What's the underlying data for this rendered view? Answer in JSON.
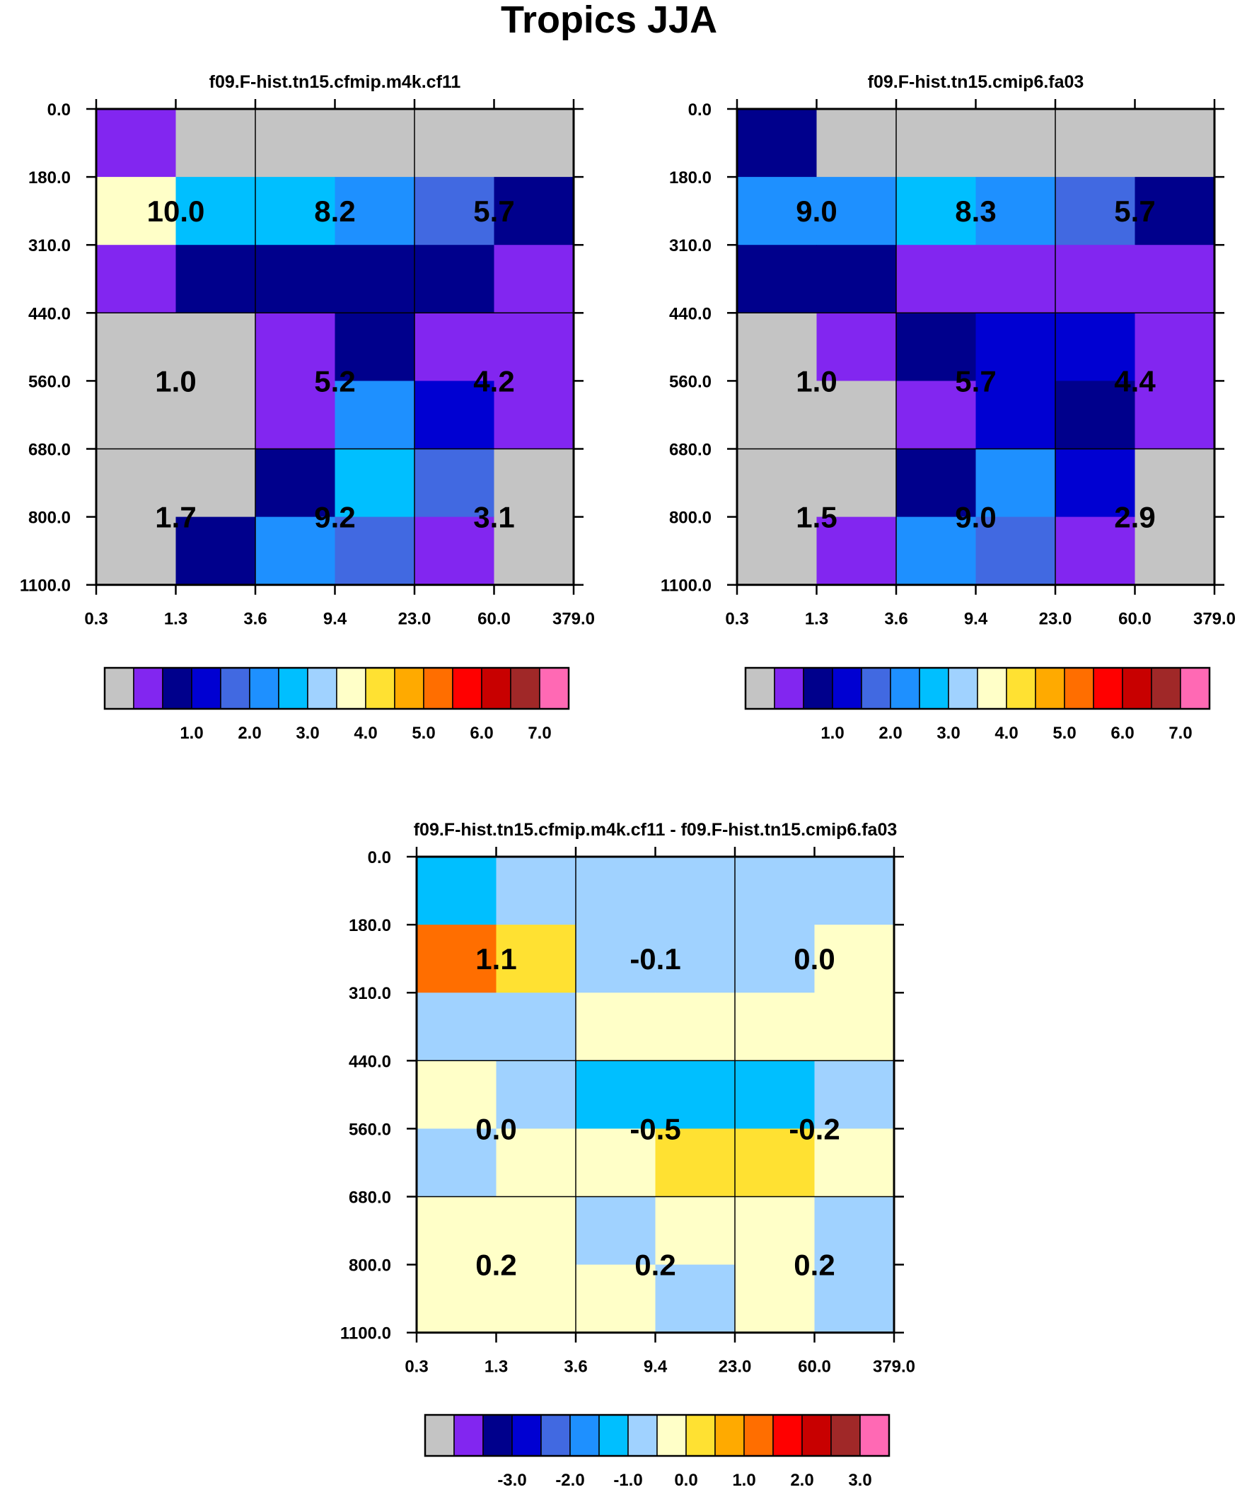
{
  "title": "Tropics JJA",
  "palette": [
    "#c4c4c4",
    "#8226f0",
    "#00008c",
    "#0000d2",
    "#4169e1",
    "#1e90ff",
    "#00bfff",
    "#a0d2ff",
    "#ffffc8",
    "#ffe132",
    "#ffaa00",
    "#ff6e00",
    "#ff0000",
    "#c80000",
    "#a02828",
    "#ff69b4"
  ],
  "chart_data": [
    {
      "type": "heatmap",
      "title": "f09.F-hist.tn15.cfmip.m4k.cf11",
      "x_ticks": [
        "0.3",
        "1.3",
        "3.6",
        "9.4",
        "23.0",
        "60.0",
        "379.0"
      ],
      "y_ticks": [
        "0.0",
        "180.0",
        "310.0",
        "440.0",
        "560.0",
        "680.0",
        "800.0",
        "1100.0"
      ],
      "cells": [
        [
          1,
          0,
          0,
          0,
          0,
          0
        ],
        [
          8,
          6,
          6,
          5,
          4,
          2
        ],
        [
          1,
          2,
          2,
          2,
          2,
          1
        ],
        [
          0,
          0,
          1,
          2,
          1,
          1
        ],
        [
          0,
          0,
          1,
          5,
          3,
          1
        ],
        [
          0,
          0,
          2,
          6,
          4,
          0
        ],
        [
          0,
          2,
          5,
          4,
          1,
          0
        ]
      ],
      "block_values": [
        [
          "10.0",
          "8.2",
          "5.7"
        ],
        [
          "1.0",
          "5.2",
          "4.2"
        ],
        [
          "1.7",
          "9.2",
          "3.1"
        ]
      ],
      "colorbar": {
        "labels": [
          "1.0",
          "2.0",
          "3.0",
          "4.0",
          "5.0",
          "6.0",
          "7.0"
        ],
        "n_boxes": 16
      }
    },
    {
      "type": "heatmap",
      "title": "f09.F-hist.tn15.cmip6.fa03",
      "x_ticks": [
        "0.3",
        "1.3",
        "3.6",
        "9.4",
        "23.0",
        "60.0",
        "379.0"
      ],
      "y_ticks": [
        "0.0",
        "180.0",
        "310.0",
        "440.0",
        "560.0",
        "680.0",
        "800.0",
        "1100.0"
      ],
      "cells": [
        [
          2,
          0,
          0,
          0,
          0,
          0
        ],
        [
          5,
          5,
          6,
          5,
          4,
          2
        ],
        [
          2,
          2,
          1,
          1,
          1,
          1
        ],
        [
          0,
          1,
          2,
          3,
          3,
          1
        ],
        [
          0,
          0,
          1,
          3,
          2,
          1
        ],
        [
          0,
          0,
          2,
          5,
          3,
          0
        ],
        [
          0,
          1,
          5,
          4,
          1,
          0
        ]
      ],
      "block_values": [
        [
          "9.0",
          "8.3",
          "5.7"
        ],
        [
          "1.0",
          "5.7",
          "4.4"
        ],
        [
          "1.5",
          "9.0",
          "2.9"
        ]
      ],
      "colorbar": {
        "labels": [
          "1.0",
          "2.0",
          "3.0",
          "4.0",
          "5.0",
          "6.0",
          "7.0"
        ],
        "n_boxes": 16
      }
    },
    {
      "type": "heatmap",
      "title": "f09.F-hist.tn15.cfmip.m4k.cf11 - f09.F-hist.tn15.cmip6.fa03",
      "x_ticks": [
        "0.3",
        "1.3",
        "3.6",
        "9.4",
        "23.0",
        "60.0",
        "379.0"
      ],
      "y_ticks": [
        "0.0",
        "180.0",
        "310.0",
        "440.0",
        "560.0",
        "680.0",
        "800.0",
        "1100.0"
      ],
      "cells": [
        [
          6,
          7,
          7,
          7,
          7,
          7
        ],
        [
          11,
          9,
          7,
          7,
          7,
          8
        ],
        [
          7,
          7,
          8,
          8,
          8,
          8
        ],
        [
          8,
          7,
          6,
          6,
          6,
          7
        ],
        [
          7,
          8,
          8,
          9,
          9,
          8
        ],
        [
          8,
          8,
          7,
          8,
          8,
          7
        ],
        [
          8,
          8,
          8,
          7,
          8,
          7
        ]
      ],
      "block_values": [
        [
          "1.1",
          "-0.1",
          "0.0"
        ],
        [
          "0.0",
          "-0.5",
          "-0.2"
        ],
        [
          "0.2",
          "0.2",
          "0.2"
        ]
      ],
      "colorbar": {
        "labels": [
          "-3.0",
          "-2.0",
          "-1.0",
          "0.0",
          "1.0",
          "2.0",
          "3.0"
        ],
        "n_boxes": 16
      }
    }
  ]
}
